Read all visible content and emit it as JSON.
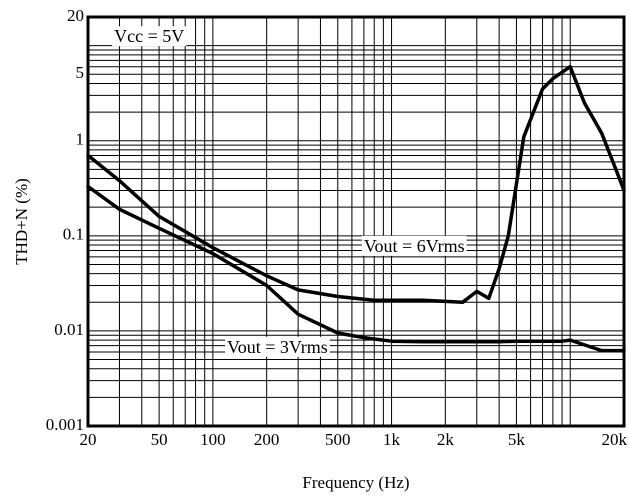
{
  "chart_data": {
    "type": "line",
    "title": "",
    "xlabel": "Frequency (Hz)",
    "ylabel": "THD+N  (%)",
    "xscale": "log",
    "yscale": "log",
    "xlim": [
      20,
      20000
    ],
    "ylim": [
      0.001,
      20
    ],
    "grid": true,
    "legend": "none",
    "xticks": [
      {
        "value": 20,
        "label": "20"
      },
      {
        "value": 50,
        "label": "50"
      },
      {
        "value": 100,
        "label": "100"
      },
      {
        "value": 200,
        "label": "200"
      },
      {
        "value": 500,
        "label": "500"
      },
      {
        "value": 1000,
        "label": "1k"
      },
      {
        "value": 2000,
        "label": "2k"
      },
      {
        "value": 5000,
        "label": "5k"
      },
      {
        "value": 20000,
        "label": "20k"
      }
    ],
    "yticks": [
      {
        "value": 0.001,
        "label": "0.001"
      },
      {
        "value": 0.01,
        "label": "0.01"
      },
      {
        "value": 0.1,
        "label": "0.1"
      },
      {
        "value": 1,
        "label": "1"
      },
      {
        "value": 5,
        "label": "5"
      },
      {
        "value": 20,
        "label": "20"
      }
    ],
    "annotations": [
      {
        "text": "Vcc = 5V",
        "x": 28,
        "y": 12
      },
      {
        "text": "Vout = 6Vrms",
        "x": 700,
        "y": 0.075
      },
      {
        "text": "Vout = 3Vrms",
        "x": 120,
        "y": 0.0065
      }
    ],
    "series": [
      {
        "name": "Vout = 6Vrms",
        "x": [
          20,
          30,
          50,
          100,
          200,
          300,
          500,
          800,
          1000,
          1500,
          2500,
          3000,
          3500,
          4000,
          4500,
          5500,
          7000,
          8000,
          10000,
          12000,
          15000,
          18000,
          20000
        ],
        "y": [
          0.7,
          0.38,
          0.16,
          0.075,
          0.038,
          0.027,
          0.023,
          0.021,
          0.021,
          0.021,
          0.02,
          0.026,
          0.022,
          0.045,
          0.1,
          1.1,
          3.5,
          4.5,
          6.0,
          2.5,
          1.2,
          0.5,
          0.3
        ]
      },
      {
        "name": "Vout = 3Vrms",
        "x": [
          20,
          30,
          50,
          100,
          200,
          300,
          500,
          700,
          1000,
          1500,
          2000,
          3000,
          4000,
          5000,
          7000,
          9000,
          10000,
          15000,
          20000
        ],
        "y": [
          0.33,
          0.19,
          0.12,
          0.065,
          0.03,
          0.015,
          0.0095,
          0.0085,
          0.0078,
          0.0077,
          0.0077,
          0.0077,
          0.0077,
          0.0078,
          0.0078,
          0.0078,
          0.008,
          0.0062,
          0.0062
        ]
      }
    ]
  }
}
